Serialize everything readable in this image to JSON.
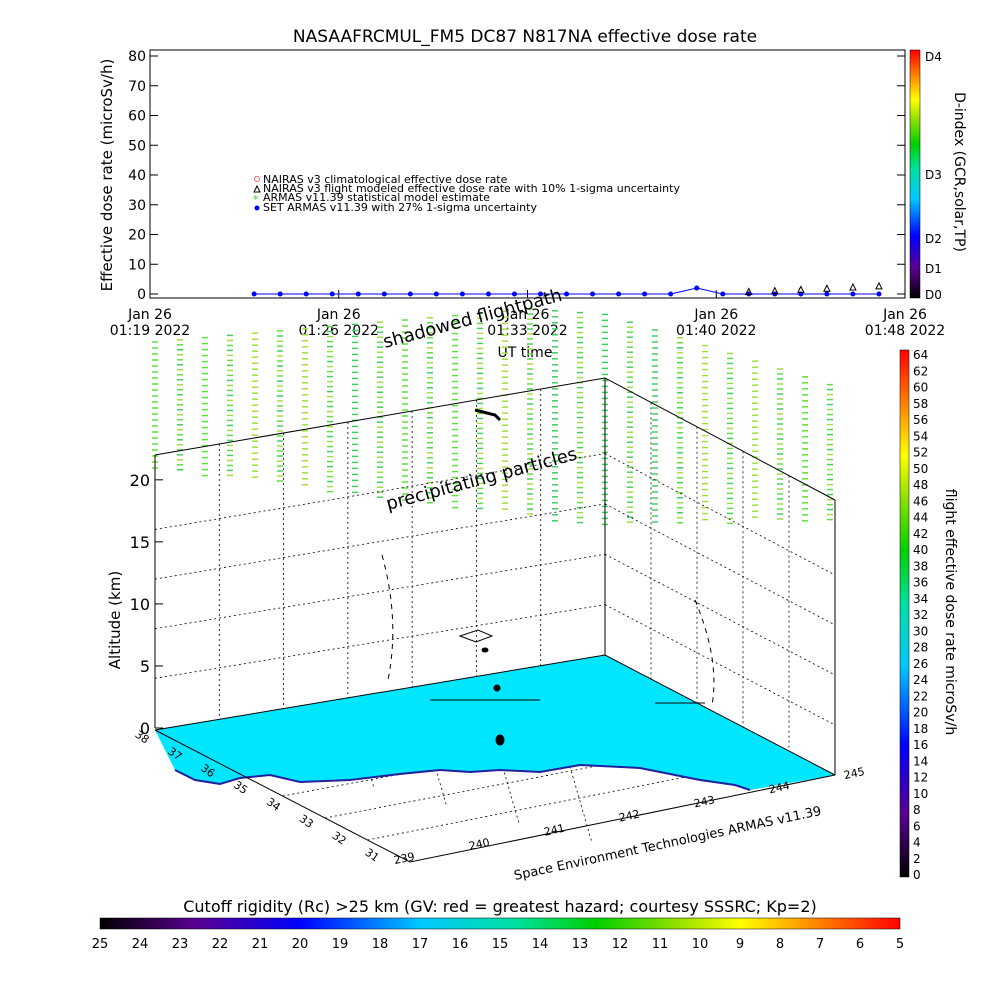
{
  "top_chart": {
    "title": "NASAAFRCMUL_FM5 DC87 N817NA effective dose rate",
    "ylabel": "Effective dose rate (microSv/h)",
    "xlabel": "UT time",
    "y_ticks": [
      "0",
      "10",
      "20",
      "30",
      "40",
      "50",
      "60",
      "70",
      "80"
    ],
    "x_ticks": [
      {
        "line1": "Jan 26",
        "line2": "01:19 2022"
      },
      {
        "line1": "Jan 26",
        "line2": "01:26 2022"
      },
      {
        "line1": "Jan 26",
        "line2": "01:33 2022"
      },
      {
        "line1": "Jan 26",
        "line2": "01:40 2022"
      },
      {
        "line1": "Jan 26",
        "line2": "01:48 2022"
      }
    ],
    "legend": [
      "NAIRAS v3 climatological effective dose rate",
      "NAIRAS v3 flight modeled effective dose rate with 10% 1-sigma uncertainty",
      "ARMAS v11.39 statistical model estimate",
      "SET ARMAS v11.39 with 27% 1-sigma uncertainty"
    ],
    "dindex_label": "D-index (GCR,solar,TP)",
    "dindex_ticks": [
      "D0",
      "D1",
      "D2",
      "D3",
      "D4"
    ]
  },
  "chart_data": [
    {
      "type": "line",
      "ylim": [
        0,
        80
      ],
      "x_time_range": [
        "01:19",
        "01:48"
      ],
      "series": [
        {
          "name": "SET ARMAS v11.39 with 27% 1-sigma uncertainty",
          "color": "#0000ff",
          "x": [
            "01:23",
            "01:24",
            "01:25",
            "01:26",
            "01:27",
            "01:28",
            "01:29",
            "01:30",
            "01:31",
            "01:32",
            "01:33",
            "01:34",
            "01:35",
            "01:36",
            "01:37",
            "01:38",
            "01:39",
            "01:40",
            "01:41",
            "01:42",
            "01:43",
            "01:44",
            "01:45",
            "01:46",
            "01:47"
          ],
          "values": [
            0,
            0,
            0,
            0,
            0,
            0,
            0,
            0,
            0,
            0,
            0,
            0,
            0,
            0,
            0,
            0,
            0,
            2,
            0,
            0,
            0,
            0,
            0,
            0,
            0
          ]
        },
        {
          "name": "NAIRAS v3 flight modeled effective dose rate with 10% 1-sigma uncertainty",
          "color": "#000000",
          "x": [
            "01:42",
            "01:43",
            "01:44",
            "01:45",
            "01:46",
            "01:47"
          ],
          "values": [
            0.5,
            0.8,
            1.2,
            1.6,
            2.0,
            2.4
          ]
        }
      ]
    },
    {
      "type": "scatter",
      "title": "",
      "ylabel": "Altitude (km)",
      "z_ticks": [
        "0",
        "5",
        "10",
        "15",
        "20"
      ],
      "lat_ticks": [
        "38",
        "37",
        "36",
        "35",
        "34",
        "33",
        "32",
        "31"
      ],
      "lon_ticks": [
        "239",
        "240",
        "241",
        "242",
        "243",
        "244",
        "245"
      ],
      "annotations": [
        "shadowed flightpath",
        "precipitating particles"
      ],
      "credit": "Space Environment Technologies ARMAS v11.39",
      "colorbar_label": "flight effective dose rate microSv/h",
      "colorbar_ticks": [
        "0",
        "2",
        "4",
        "6",
        "8",
        "10",
        "12",
        "14",
        "16",
        "18",
        "20",
        "22",
        "24",
        "26",
        "28",
        "30",
        "32",
        "34",
        "36",
        "38",
        "40",
        "42",
        "44",
        "46",
        "48",
        "50",
        "52",
        "54",
        "56",
        "58",
        "60",
        "62",
        "64"
      ]
    }
  ],
  "bottom_bar": {
    "label": "Cutoff rigidity (Rc) >25 km (GV: red = greatest hazard; courtesy SSSRC; Kp=2)",
    "ticks": [
      "25",
      "24",
      "23",
      "22",
      "21",
      "20",
      "19",
      "18",
      "17",
      "16",
      "15",
      "14",
      "13",
      "12",
      "11",
      "10",
      "9",
      "8",
      "7",
      "6",
      "5"
    ]
  }
}
